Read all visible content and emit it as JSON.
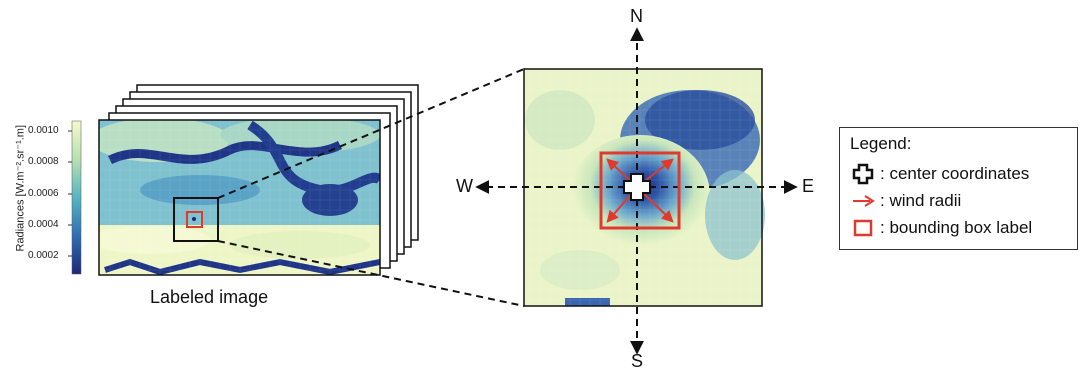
{
  "colorbar": {
    "title": "Radiances [W.m⁻².sr⁻¹.m]",
    "ticks": [
      "0.0010",
      "0.0008",
      "0.0006",
      "0.0004",
      "0.0002"
    ]
  },
  "labeled_image": {
    "caption": "Labeled image"
  },
  "compass": {
    "north": "N",
    "south": "S",
    "west": "W",
    "east": "E"
  },
  "legend": {
    "title": "Legend:",
    "center": ": center coordinates",
    "wind": ": wind radii",
    "bbox": ": bounding box label"
  },
  "colors": {
    "bbox_red": "#e03a2f",
    "arrow_red": "#e03a2f",
    "deep_blue": "#1a2a7a",
    "mid_blue": "#3f7fbf",
    "pale": "#eef6c8"
  }
}
